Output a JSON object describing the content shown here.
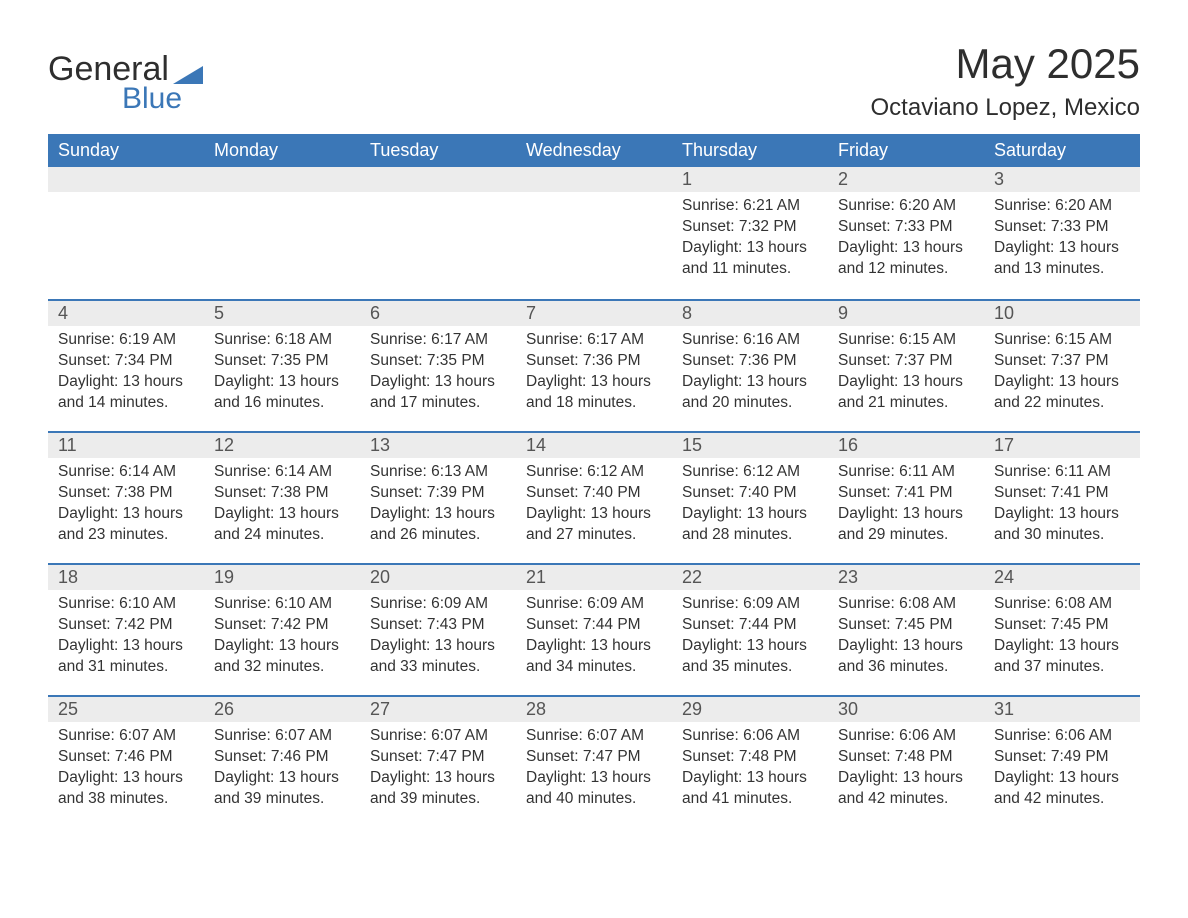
{
  "logo": {
    "text1": "General",
    "text2": "Blue",
    "triangle_color": "#3b77b7"
  },
  "title": "May 2025",
  "subtitle": "Octaviano Lopez, Mexico",
  "colors": {
    "header_bg": "#3b77b7",
    "header_text": "#ffffff",
    "daynum_bg": "#ececec",
    "daynum_border": "#3b77b7",
    "body_text": "#333333",
    "logo_dark": "#2e2e2e",
    "logo_blue": "#3b77b7"
  },
  "weekdays": [
    "Sunday",
    "Monday",
    "Tuesday",
    "Wednesday",
    "Thursday",
    "Friday",
    "Saturday"
  ],
  "first_weekday_index": 4,
  "days": [
    {
      "n": 1,
      "sunrise": "6:21 AM",
      "sunset": "7:32 PM",
      "daylight": "13 hours and 11 minutes."
    },
    {
      "n": 2,
      "sunrise": "6:20 AM",
      "sunset": "7:33 PM",
      "daylight": "13 hours and 12 minutes."
    },
    {
      "n": 3,
      "sunrise": "6:20 AM",
      "sunset": "7:33 PM",
      "daylight": "13 hours and 13 minutes."
    },
    {
      "n": 4,
      "sunrise": "6:19 AM",
      "sunset": "7:34 PM",
      "daylight": "13 hours and 14 minutes."
    },
    {
      "n": 5,
      "sunrise": "6:18 AM",
      "sunset": "7:35 PM",
      "daylight": "13 hours and 16 minutes."
    },
    {
      "n": 6,
      "sunrise": "6:17 AM",
      "sunset": "7:35 PM",
      "daylight": "13 hours and 17 minutes."
    },
    {
      "n": 7,
      "sunrise": "6:17 AM",
      "sunset": "7:36 PM",
      "daylight": "13 hours and 18 minutes."
    },
    {
      "n": 8,
      "sunrise": "6:16 AM",
      "sunset": "7:36 PM",
      "daylight": "13 hours and 20 minutes."
    },
    {
      "n": 9,
      "sunrise": "6:15 AM",
      "sunset": "7:37 PM",
      "daylight": "13 hours and 21 minutes."
    },
    {
      "n": 10,
      "sunrise": "6:15 AM",
      "sunset": "7:37 PM",
      "daylight": "13 hours and 22 minutes."
    },
    {
      "n": 11,
      "sunrise": "6:14 AM",
      "sunset": "7:38 PM",
      "daylight": "13 hours and 23 minutes."
    },
    {
      "n": 12,
      "sunrise": "6:14 AM",
      "sunset": "7:38 PM",
      "daylight": "13 hours and 24 minutes."
    },
    {
      "n": 13,
      "sunrise": "6:13 AM",
      "sunset": "7:39 PM",
      "daylight": "13 hours and 26 minutes."
    },
    {
      "n": 14,
      "sunrise": "6:12 AM",
      "sunset": "7:40 PM",
      "daylight": "13 hours and 27 minutes."
    },
    {
      "n": 15,
      "sunrise": "6:12 AM",
      "sunset": "7:40 PM",
      "daylight": "13 hours and 28 minutes."
    },
    {
      "n": 16,
      "sunrise": "6:11 AM",
      "sunset": "7:41 PM",
      "daylight": "13 hours and 29 minutes."
    },
    {
      "n": 17,
      "sunrise": "6:11 AM",
      "sunset": "7:41 PM",
      "daylight": "13 hours and 30 minutes."
    },
    {
      "n": 18,
      "sunrise": "6:10 AM",
      "sunset": "7:42 PM",
      "daylight": "13 hours and 31 minutes."
    },
    {
      "n": 19,
      "sunrise": "6:10 AM",
      "sunset": "7:42 PM",
      "daylight": "13 hours and 32 minutes."
    },
    {
      "n": 20,
      "sunrise": "6:09 AM",
      "sunset": "7:43 PM",
      "daylight": "13 hours and 33 minutes."
    },
    {
      "n": 21,
      "sunrise": "6:09 AM",
      "sunset": "7:44 PM",
      "daylight": "13 hours and 34 minutes."
    },
    {
      "n": 22,
      "sunrise": "6:09 AM",
      "sunset": "7:44 PM",
      "daylight": "13 hours and 35 minutes."
    },
    {
      "n": 23,
      "sunrise": "6:08 AM",
      "sunset": "7:45 PM",
      "daylight": "13 hours and 36 minutes."
    },
    {
      "n": 24,
      "sunrise": "6:08 AM",
      "sunset": "7:45 PM",
      "daylight": "13 hours and 37 minutes."
    },
    {
      "n": 25,
      "sunrise": "6:07 AM",
      "sunset": "7:46 PM",
      "daylight": "13 hours and 38 minutes."
    },
    {
      "n": 26,
      "sunrise": "6:07 AM",
      "sunset": "7:46 PM",
      "daylight": "13 hours and 39 minutes."
    },
    {
      "n": 27,
      "sunrise": "6:07 AM",
      "sunset": "7:47 PM",
      "daylight": "13 hours and 39 minutes."
    },
    {
      "n": 28,
      "sunrise": "6:07 AM",
      "sunset": "7:47 PM",
      "daylight": "13 hours and 40 minutes."
    },
    {
      "n": 29,
      "sunrise": "6:06 AM",
      "sunset": "7:48 PM",
      "daylight": "13 hours and 41 minutes."
    },
    {
      "n": 30,
      "sunrise": "6:06 AM",
      "sunset": "7:48 PM",
      "daylight": "13 hours and 42 minutes."
    },
    {
      "n": 31,
      "sunrise": "6:06 AM",
      "sunset": "7:49 PM",
      "daylight": "13 hours and 42 minutes."
    }
  ],
  "labels": {
    "sunrise": "Sunrise:",
    "sunset": "Sunset:",
    "daylight": "Daylight:"
  }
}
